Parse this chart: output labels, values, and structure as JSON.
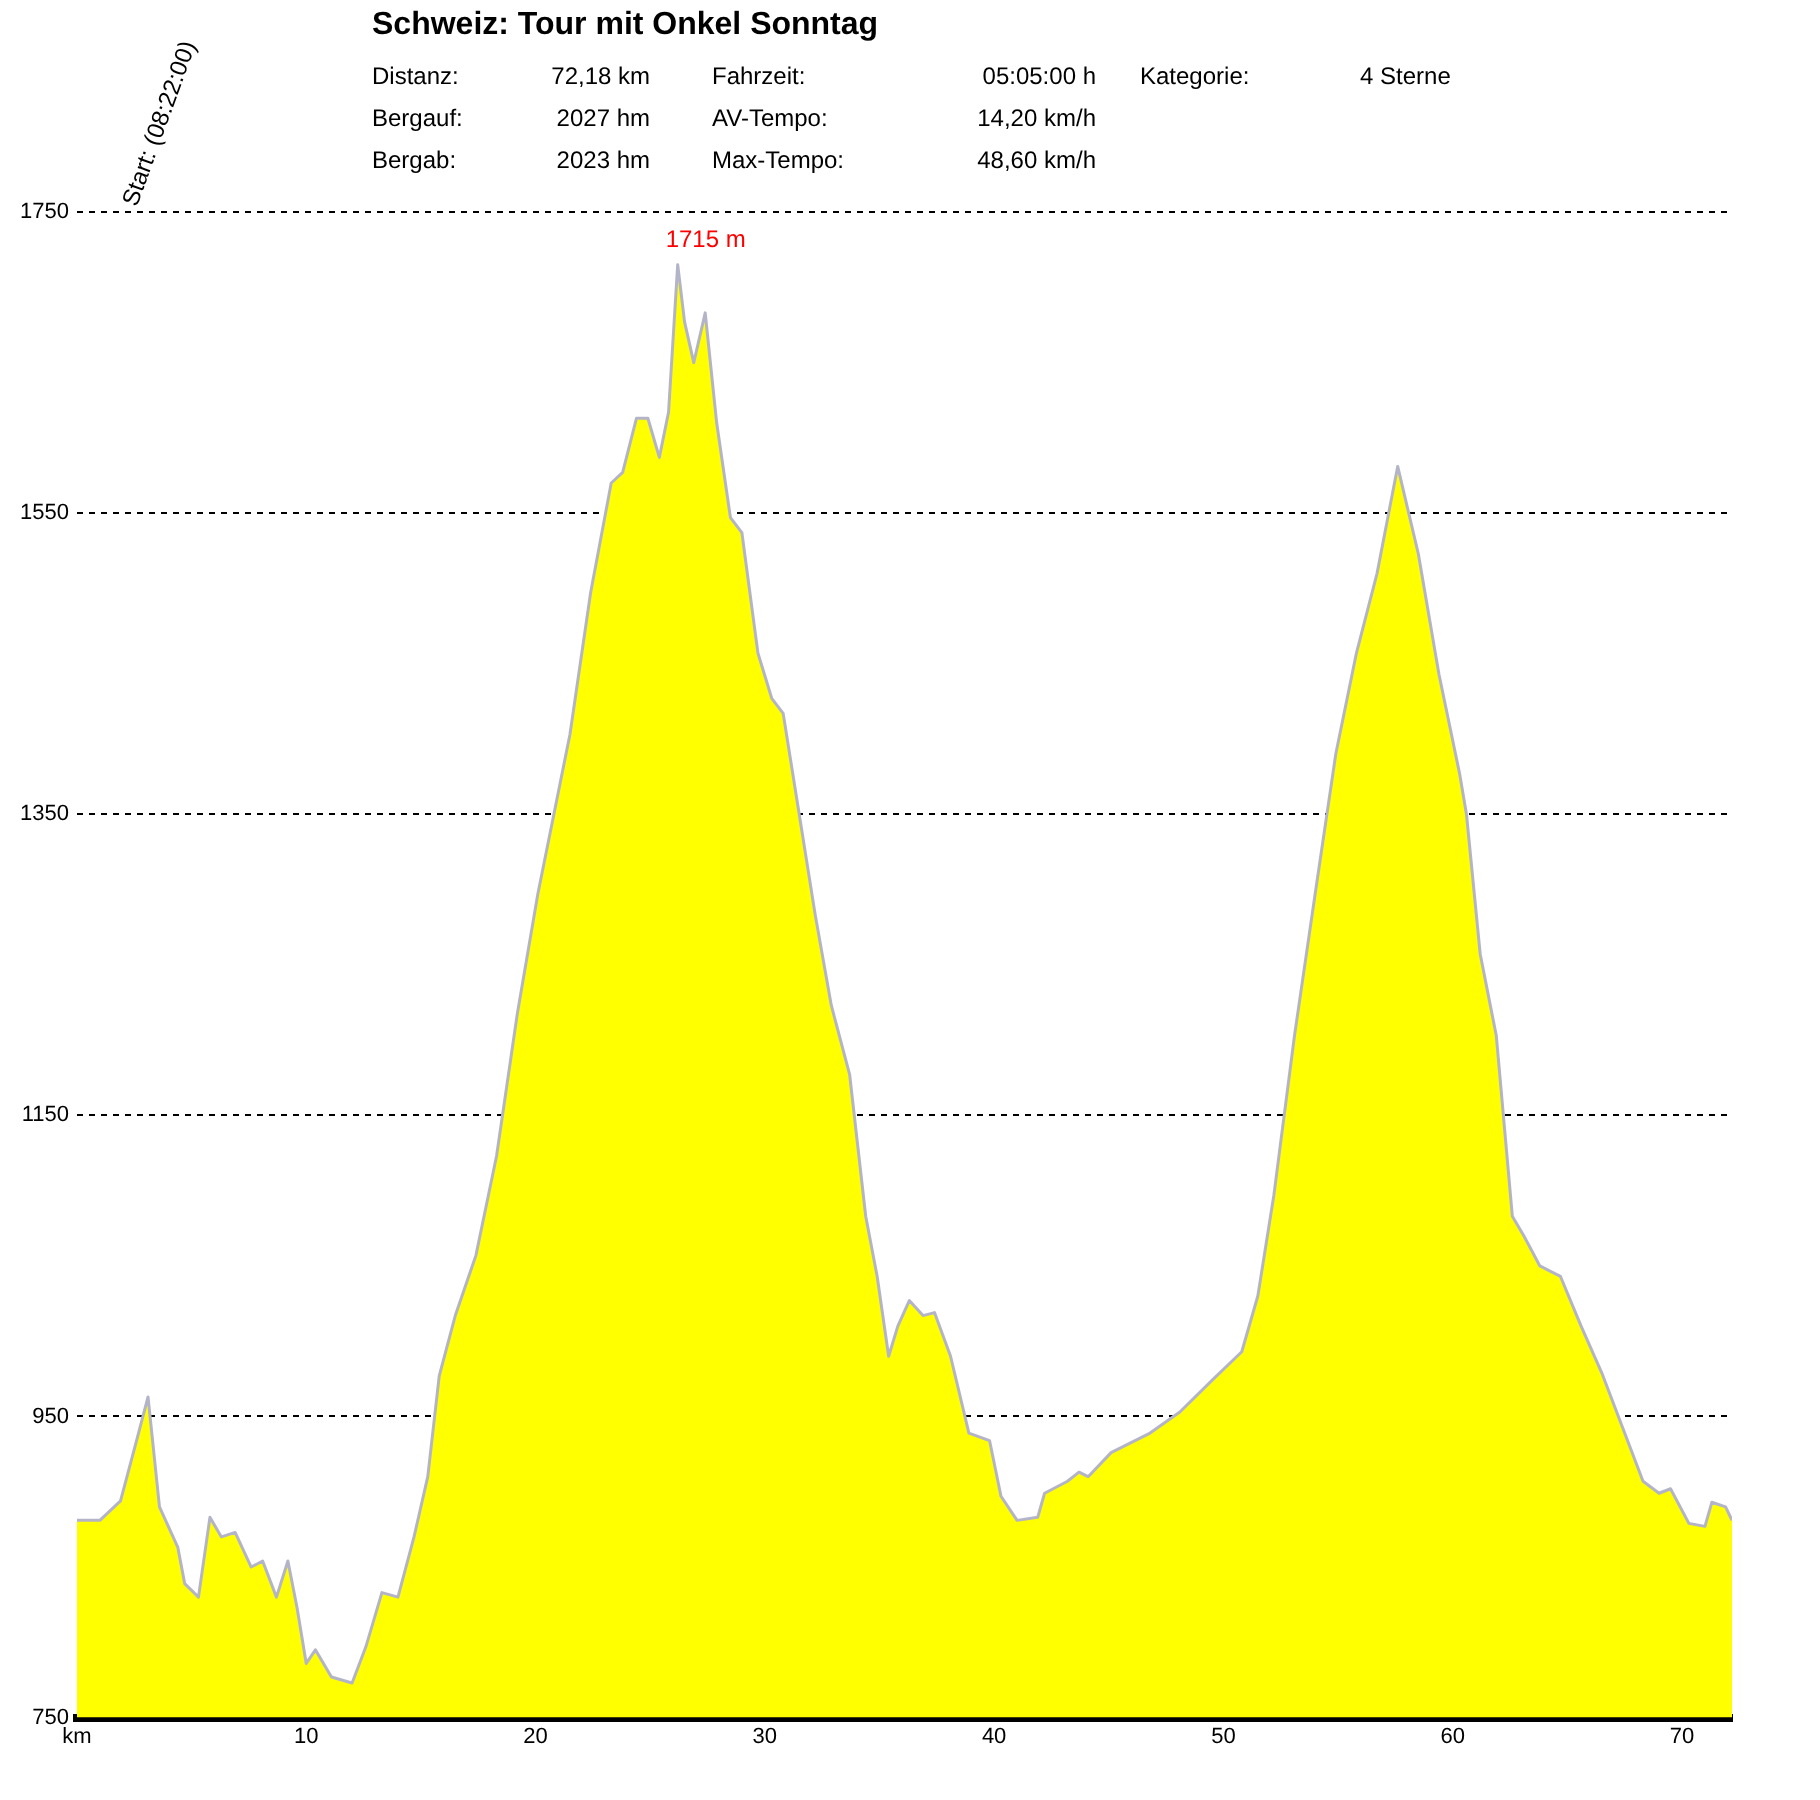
{
  "chart_data": {
    "type": "area",
    "title": "Schweiz: Tour mit Onkel Sonntag",
    "annotations": [
      "Start: (08:22:00)",
      "Distanz:",
      "72,18 km",
      "Fahrzeit:",
      "05:05:00 h",
      "Kategorie:",
      "4 Sterne",
      "Bergauf:",
      "2027 hm",
      "AV-Tempo:",
      "14,20 km/h",
      "Bergab:",
      "2023 hm",
      "Max-Tempo:",
      "48,60 km/h",
      {
        "text": "1715 m",
        "x": 26.2,
        "y": 1715
      }
    ],
    "x": [
      0,
      1,
      1.9,
      2.6,
      3.1,
      3.6,
      4.4,
      4.7,
      5.3,
      5.8,
      6.3,
      6.9,
      7.6,
      8.1,
      8.7,
      9.2,
      9.6,
      10,
      10.4,
      11.1,
      12,
      12.6,
      13.3,
      14,
      14.7,
      15.3,
      15.8,
      16.5,
      17.4,
      18.3,
      19.2,
      20.1,
      20.8,
      21.5,
      22.4,
      23.3,
      23.8,
      24.4,
      24.9,
      25.4,
      25.8,
      26.2,
      26.5,
      26.9,
      27.4,
      27.9,
      28.5,
      29,
      29.7,
      30.3,
      30.8,
      31.5,
      32.2,
      32.9,
      33.7,
      34.4,
      34.9,
      35.4,
      35.8,
      36.3,
      36.9,
      37.4,
      38.1,
      38.9,
      39.8,
      40.3,
      41,
      41.9,
      42.2,
      43.2,
      43.7,
      44.1,
      45.1,
      46.8,
      48.1,
      49.5,
      50.8,
      51.5,
      52.2,
      53.1,
      54,
      54.9,
      55.8,
      56.7,
      57.6,
      58.5,
      59.4,
      60.3,
      60.6,
      61.2,
      61.9,
      62.6,
      63.1,
      63.8,
      64.7,
      65.6,
      66.5,
      67.4,
      68.3,
      69,
      69.5,
      70.3,
      71,
      71.3,
      71.9,
      72.18
    ],
    "series": [
      {
        "color": "#ffff00",
        "values": [
          881,
          881,
          894,
          934,
          963,
          890,
          863,
          839,
          830,
          883,
          870,
          873,
          850,
          854,
          830,
          854,
          823,
          786,
          795,
          777,
          773,
          797,
          833,
          830,
          870,
          910,
          977,
          1017,
          1057,
          1123,
          1217,
          1297,
          1350,
          1403,
          1497,
          1570,
          1577,
          1613,
          1613,
          1587,
          1617,
          1715,
          1677,
          1650,
          1683,
          1610,
          1547,
          1537,
          1457,
          1427,
          1417,
          1350,
          1283,
          1223,
          1177,
          1083,
          1043,
          990,
          1010,
          1027,
          1017,
          1019,
          990,
          939,
          934,
          897,
          881,
          883,
          899,
          907,
          913,
          910,
          926,
          939,
          953,
          974,
          993,
          1030,
          1097,
          1203,
          1297,
          1390,
          1457,
          1510,
          1581,
          1523,
          1443,
          1377,
          1350,
          1257,
          1203,
          1083,
          1070,
          1050,
          1043,
          1010,
          979,
          943,
          907,
          899,
          902,
          879,
          877,
          893,
          890,
          881
        ]
      }
    ],
    "xlim": [
      0,
      72.18
    ],
    "xticks": [
      {
        "value": 0,
        "label": "km"
      },
      10,
      20,
      30,
      40,
      50,
      60,
      70
    ],
    "ylim": [
      750,
      1750
    ],
    "yticks": [
      750,
      950,
      1150,
      1350,
      1550,
      1750
    ],
    "grid": "y",
    "legend": false
  }
}
